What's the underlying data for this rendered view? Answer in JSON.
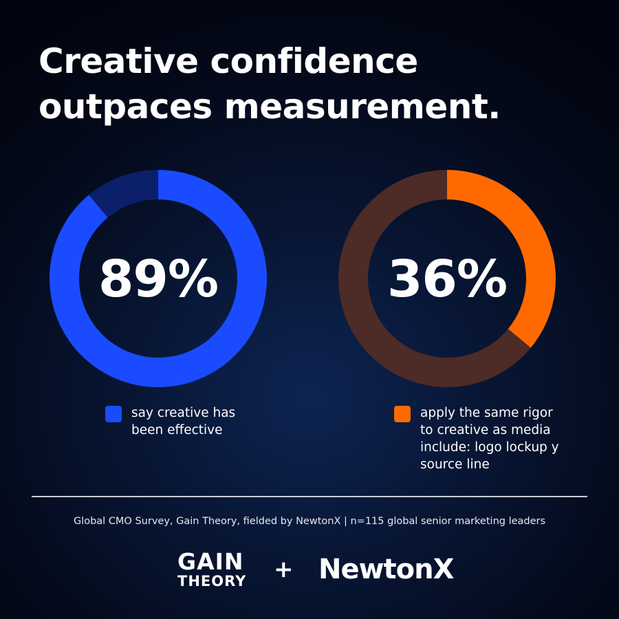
{
  "headline": {
    "line1": "Creative confidence",
    "line2": "outpaces measurement."
  },
  "chart_data": [
    {
      "type": "pie",
      "donut": true,
      "value": 89,
      "center_label": "89%",
      "slices": [
        {
          "name": "say creative has been effective",
          "value": 89,
          "color": "#1a4bff"
        },
        {
          "name": "",
          "value": 11,
          "color": "#0c1f6b"
        }
      ],
      "legend": {
        "line1": "say creative has",
        "line2": "been effective",
        "color": "#1a4bff"
      },
      "legend_placement": "bottom"
    },
    {
      "type": "pie",
      "donut": true,
      "value": 36,
      "center_label": "36%",
      "slices": [
        {
          "name": "apply the same rigor to creative as media",
          "value": 36,
          "color": "#ff6a00"
        },
        {
          "name": "",
          "value": 64,
          "color": "#4d2b26"
        }
      ],
      "legend": {
        "line1": "apply the same rigor",
        "line2": "to creative as media",
        "line3": "include: logo lockup y",
        "line4": "source line",
        "color": "#ff6a00"
      },
      "legend_placement": "bottom"
    }
  ],
  "source": "Global CMO Survey, Gain Theory, fielded by NewtonX | n=115 global senior marketing leaders",
  "logos": {
    "gain_line1": "GAIN",
    "gain_line2": "THEORY",
    "plus": "+",
    "newtonx": "NewtonX"
  },
  "colors": {
    "background": "#040a1c",
    "blue": "#1a4bff",
    "blue_dark": "#0c1f6b",
    "orange": "#ff6a00",
    "brown": "#4d2b26"
  }
}
